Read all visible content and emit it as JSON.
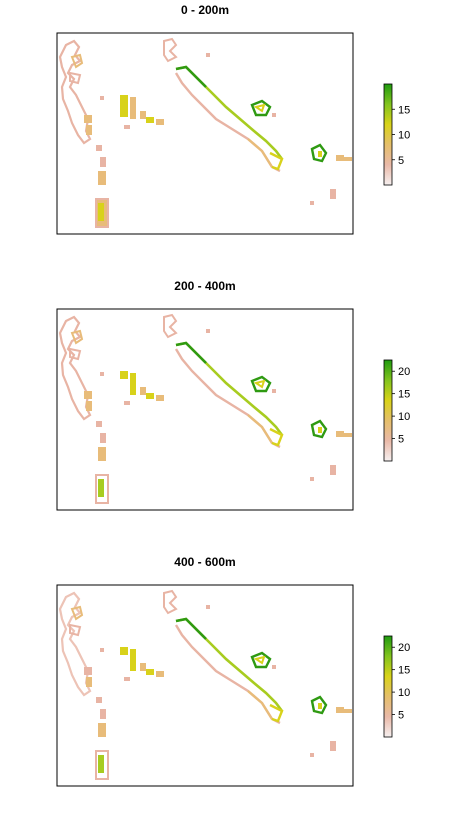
{
  "panels": [
    {
      "title": "0 - 200m",
      "legend": {
        "ticks": [
          5,
          10,
          15
        ],
        "min": 0,
        "max": 20
      }
    },
    {
      "title": "200 - 400m",
      "legend": {
        "ticks": [
          5,
          10,
          15,
          20
        ],
        "min": 0,
        "max": 22.5
      }
    },
    {
      "title": "400 - 600m",
      "legend": {
        "ticks": [
          5,
          10,
          15,
          20
        ],
        "min": 0,
        "max": 22.5
      }
    }
  ],
  "colors": {
    "low": "#f1e4e4",
    "pink": "#e8b4a4",
    "tan": "#e8bc7a",
    "yellow": "#d8d21a",
    "lime": "#a8cc20",
    "green": "#2f9a12"
  }
}
